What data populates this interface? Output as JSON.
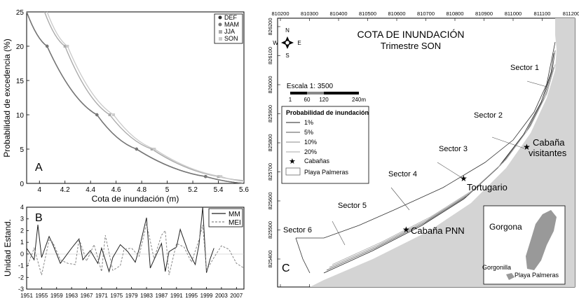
{
  "panelA": {
    "letter": "A",
    "xlabel": "Cota de inundación (m)",
    "ylabel": "Probabilidad de excedencia (%)",
    "legend": [
      "DEF",
      "MAM",
      "JJA",
      "SON"
    ]
  },
  "panelB": {
    "letter": "B",
    "ylabel": "Unidad Estand.",
    "legend": [
      "MM",
      "MEI"
    ]
  },
  "panelC": {
    "letter": "C",
    "title": "COTA DE INUNDACIÓN",
    "subtitle": "Trimestre SON",
    "x_ticks": [
      "810200",
      "810300",
      "810400",
      "810500",
      "810600",
      "810700",
      "810800",
      "810900",
      "811000",
      "811100",
      "811200"
    ],
    "y_ticks": [
      "826200",
      "826100",
      "826000",
      "825900",
      "825800",
      "825700",
      "825600",
      "825500",
      "825400"
    ],
    "compass": {
      "n": "N",
      "s": "S",
      "e": "E",
      "w": "W"
    },
    "scale": {
      "label": "Escala 1: 3500",
      "ticks": [
        "1",
        "60",
        "120",
        "240m"
      ]
    },
    "legend": {
      "title": "Probabilidad de inundación",
      "items": [
        "1%",
        "5%",
        "10%",
        "20%",
        "Cabañas",
        "Playa Palmeras"
      ]
    },
    "sectors": [
      "Sector 1",
      "Sector 2",
      "Sector 3",
      "Sector 4",
      "Sector 5",
      "Sector 6"
    ],
    "places": {
      "visitantes1": "Cabaña",
      "visitantes2": "visitantes",
      "tortugario": "Tortugario",
      "pnn": "Cabaña PNN"
    },
    "inset": {
      "island": "Gorgona",
      "gorgonilla": "Gorgonilla",
      "playa": "Playa Palmeras"
    }
  },
  "chart_data": [
    {
      "type": "line",
      "xlabel": "Cota de inundación (m)",
      "ylabel": "Probabilidad de excedencia (%)",
      "xlim": [
        3.9,
        5.6
      ],
      "ylim": [
        0,
        25
      ],
      "x_ticks": [
        4,
        4.2,
        4.4,
        4.6,
        4.8,
        5,
        5.2,
        5.4,
        5.6
      ],
      "y_ticks": [
        0,
        5,
        10,
        15,
        20,
        25
      ],
      "series": [
        {
          "name": "DEF",
          "color": "#333333",
          "x": [
            3.9,
            4.06,
            4.45,
            4.76,
            5.3,
            5.6
          ],
          "y": [
            25,
            20,
            10,
            5,
            1,
            0
          ]
        },
        {
          "name": "MAM",
          "color": "#777777",
          "x": [
            3.9,
            4.06,
            4.45,
            4.76,
            5.3,
            5.6
          ],
          "y": [
            25,
            20,
            10,
            5,
            1,
            0
          ]
        },
        {
          "name": "JJA",
          "color": "#aaaaaa",
          "x": [
            4.04,
            4.2,
            4.55,
            4.88,
            5.4,
            5.6
          ],
          "y": [
            25,
            20,
            10,
            5,
            1,
            0.4
          ]
        },
        {
          "name": "SON",
          "color": "#cccccc",
          "x": [
            4.06,
            4.22,
            4.58,
            4.9,
            5.42,
            5.6
          ],
          "y": [
            25,
            20,
            10,
            5,
            1,
            0.3
          ]
        }
      ]
    },
    {
      "type": "line",
      "ylabel": "Unidad Estand.",
      "xlim": [
        1951,
        2009
      ],
      "ylim": [
        -3,
        4
      ],
      "x_ticks": [
        1951,
        1955,
        1959,
        1963,
        1967,
        1971,
        1975,
        1979,
        1983,
        1987,
        1991,
        1995,
        1999,
        2003,
        2007
      ],
      "y_ticks": [
        -3,
        -2,
        -1,
        0,
        1,
        2,
        3,
        4
      ],
      "series": [
        {
          "name": "MM",
          "color": "#222222",
          "x": [
            1951,
            1953,
            1954,
            1955,
            1957,
            1958,
            1960,
            1963,
            1965,
            1966,
            1968,
            1970,
            1971,
            1973,
            1974,
            1976,
            1978,
            1980,
            1981,
            1983,
            1984,
            1985,
            1987,
            1988,
            1989,
            1991,
            1992,
            1994,
            1996,
            1997,
            1998,
            1999,
            2000,
            2001
          ],
          "y": [
            0.5,
            -0.5,
            2.5,
            -0.3,
            1.5,
            0.8,
            -0.8,
            0.5,
            1.3,
            -0.5,
            0.3,
            -0.8,
            0.5,
            -1.5,
            -0.3,
            0.8,
            0.2,
            -0.7,
            0.4,
            3.1,
            -1.2,
            -0.5,
            0.9,
            -1.5,
            0.2,
            0.6,
            2.1,
            0.3,
            -0.9,
            0.8,
            4.0,
            -1.6,
            -0.4,
            0.5
          ]
        },
        {
          "name": "MEI",
          "color": "#888888",
          "x": [
            1951,
            1953,
            1955,
            1957,
            1958,
            1960,
            1962,
            1964,
            1965,
            1967,
            1969,
            1971,
            1972,
            1974,
            1976,
            1977,
            1979,
            1981,
            1983,
            1985,
            1987,
            1988,
            1989,
            1991,
            1993,
            1995,
            1997,
            1998,
            1999,
            2001,
            2003,
            2005,
            2007,
            2009
          ],
          "y": [
            -1.2,
            0.5,
            -1.8,
            1.2,
            1.0,
            -0.5,
            -0.8,
            -0.9,
            1.3,
            -0.6,
            0.8,
            -1.5,
            1.6,
            -1.4,
            -1.0,
            0.4,
            0.5,
            -0.2,
            2.6,
            -0.4,
            1.6,
            2.0,
            -1.8,
            0.9,
            0.6,
            -0.7,
            1.2,
            2.5,
            -1.4,
            -0.3,
            0.7,
            0.4,
            -0.8,
            -1.2
          ]
        }
      ]
    }
  ]
}
